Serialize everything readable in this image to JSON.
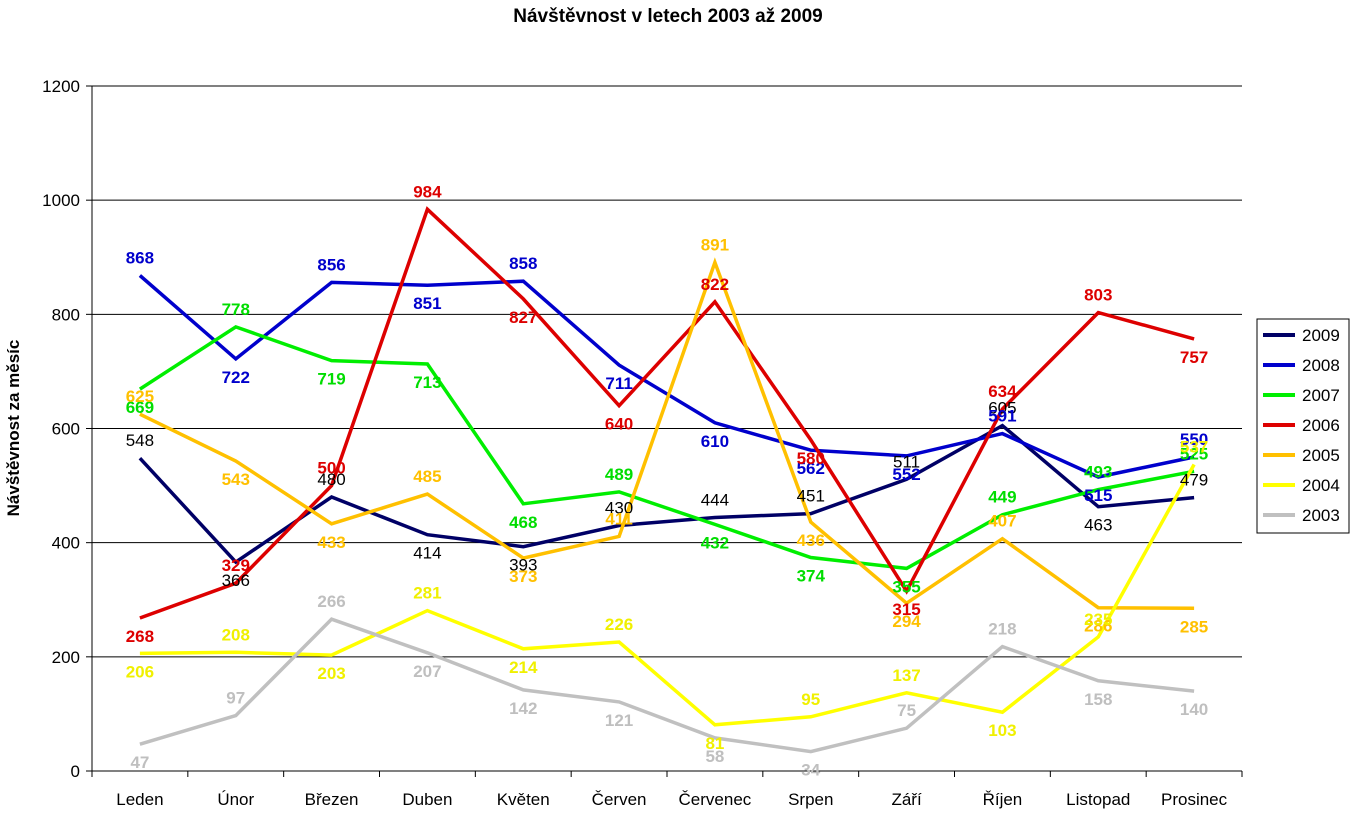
{
  "chart_data": {
    "type": "line",
    "title": "Návštěvnost v letech 2003 až 2009",
    "xlabel": "",
    "ylabel": "Návštěvnost za měsíc",
    "ylim": [
      0,
      1200
    ],
    "yticks": [
      "0",
      "200",
      "400",
      "600",
      "800",
      "1000",
      "1200"
    ],
    "grid": true,
    "legend_position": "right",
    "categories": [
      "Leden",
      "Únor",
      "Březen",
      "Duben",
      "Květen",
      "Červen",
      "Červenec",
      "Srpen",
      "Září",
      "Říjen",
      "Listopad",
      "Prosinec"
    ],
    "series": [
      {
        "name": "2009",
        "color": "#000066",
        "label_color": "#000000",
        "label_bold": false,
        "values": [
          548,
          366,
          480,
          414,
          393,
          430,
          444,
          451,
          511,
          605,
          463,
          479
        ]
      },
      {
        "name": "2008",
        "color": "#0000CC",
        "label_color": "#0000CC",
        "label_bold": true,
        "values": [
          868,
          722,
          856,
          851,
          858,
          711,
          610,
          562,
          552,
          591,
          515,
          550
        ]
      },
      {
        "name": "2007",
        "color": "#00EE00",
        "label_color": "#00DD00",
        "label_bold": true,
        "values": [
          669,
          778,
          719,
          713,
          468,
          489,
          432,
          374,
          355,
          449,
          493,
          525
        ]
      },
      {
        "name": "2006",
        "color": "#DD0000",
        "label_color": "#DD0000",
        "label_bold": true,
        "values": [
          268,
          329,
          500,
          984,
          827,
          640,
          822,
          580,
          315,
          634,
          803,
          757
        ]
      },
      {
        "name": "2005",
        "color": "#FFC000",
        "label_color": "#FFC000",
        "label_bold": true,
        "values": [
          625,
          543,
          433,
          485,
          373,
          411,
          891,
          436,
          294,
          407,
          286,
          285
        ]
      },
      {
        "name": "2004",
        "color": "#FFFF00",
        "label_color": "#F0F000",
        "label_bold": true,
        "values": [
          206,
          208,
          203,
          281,
          214,
          226,
          81,
          95,
          137,
          103,
          235,
          537
        ]
      },
      {
        "name": "2003",
        "color": "#C0C0C0",
        "label_color": "#BFBFBF",
        "label_bold": true,
        "values": [
          47,
          97,
          266,
          207,
          142,
          121,
          58,
          34,
          75,
          218,
          158,
          140
        ]
      }
    ]
  }
}
